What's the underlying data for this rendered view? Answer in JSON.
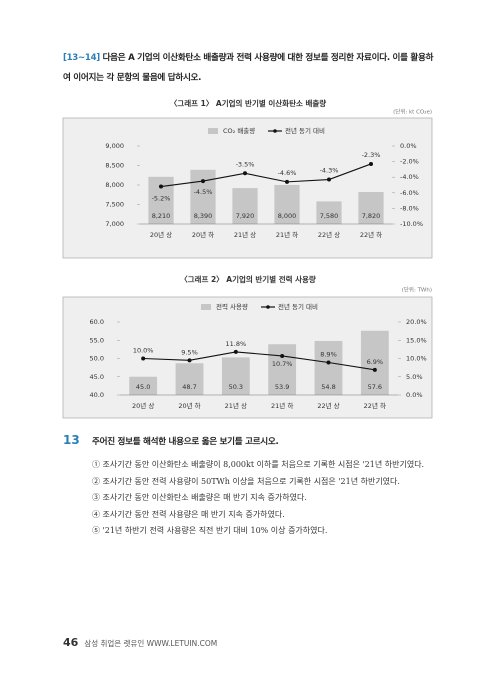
{
  "header": {
    "number": "[13~14]",
    "text": "다음은 A 기업의 이산화탄소 배출량과 전력 사용량에 대한 정보를 정리한 자료이다. 이를 활용하여 이어지는 각 문항의 물음에 답하시오."
  },
  "chart_data": [
    {
      "type": "bar",
      "title": "〈그래프 1〉 A기업의 반기별 이산화탄소 배출량",
      "unit": "(단위: kt CO₂e)",
      "categories": [
        "20년 상",
        "20년 하",
        "21년 상",
        "21년 하",
        "22년 상",
        "22년 하"
      ],
      "series": [
        {
          "name": "CO₂ 배출량",
          "type": "bar",
          "color": "#c6c6c6",
          "values": [
            8210,
            8390,
            7920,
            8000,
            7580,
            7820
          ],
          "value_labels": [
            "8,210",
            "8,390",
            "7,920",
            "8,000",
            "7,580",
            "7,820"
          ]
        },
        {
          "name": "전년 동기 대비",
          "type": "line",
          "axis": "y2",
          "color": "#111111",
          "values": [
            -5.2,
            -4.5,
            -3.5,
            -4.6,
            -4.3,
            -2.3
          ],
          "value_labels": [
            "-5.2%",
            "-4.5%",
            "-3.5%",
            "-4.6%",
            "-4.3%",
            "-2.3%"
          ]
        }
      ],
      "ylim": [
        7000,
        9000
      ],
      "yticks": [
        {
          "value": 7000,
          "label": "7,000"
        },
        {
          "value": 7500,
          "label": "7,500"
        },
        {
          "value": 8000,
          "label": "8,000"
        },
        {
          "value": 8500,
          "label": "8,500"
        },
        {
          "value": 9000,
          "label": "9,000"
        }
      ],
      "y2lim": [
        -10,
        0
      ],
      "y2ticks": [
        {
          "value": -10,
          "label": "-10.0%"
        },
        {
          "value": -8,
          "label": "-8.0%"
        },
        {
          "value": -6,
          "label": "-6.0%"
        },
        {
          "value": -4,
          "label": "-4.0%"
        },
        {
          "value": -2,
          "label": "-2.0%"
        },
        {
          "value": 0,
          "label": "0.0%"
        }
      ]
    },
    {
      "type": "bar",
      "title": "〈그래프 2〉 A기업의 반기별 전력 사용량",
      "unit": "(단위: TWh)",
      "categories": [
        "20년 상",
        "20년 하",
        "21년 상",
        "21년 하",
        "22년 상",
        "22년 하"
      ],
      "series": [
        {
          "name": "전력 사용량",
          "type": "bar",
          "color": "#c6c6c6",
          "values": [
            45.0,
            48.7,
            50.3,
            53.9,
            54.8,
            57.6
          ],
          "value_labels": [
            "45.0",
            "48.7",
            "50.3",
            "53.9",
            "54.8",
            "57.6"
          ]
        },
        {
          "name": "전년 동기 대비",
          "type": "line",
          "axis": "y2",
          "color": "#111111",
          "values": [
            10.0,
            9.5,
            11.8,
            10.7,
            8.9,
            6.9
          ],
          "value_labels": [
            "10.0%",
            "9.5%",
            "11.8%",
            "10.7%",
            "8.9%",
            "6.9%"
          ]
        }
      ],
      "ylim": [
        40,
        60
      ],
      "yticks": [
        {
          "value": 40,
          "label": "40.0"
        },
        {
          "value": 45,
          "label": "45.0"
        },
        {
          "value": 50,
          "label": "50.0"
        },
        {
          "value": 55,
          "label": "55.0"
        },
        {
          "value": 60,
          "label": "60.0"
        }
      ],
      "y2lim": [
        0,
        20
      ],
      "y2ticks": [
        {
          "value": 0,
          "label": "0.0%"
        },
        {
          "value": 5,
          "label": "5.0%"
        },
        {
          "value": 10,
          "label": "10.0%"
        },
        {
          "value": 15,
          "label": "15.0%"
        },
        {
          "value": 20,
          "label": "20.0%"
        }
      ]
    }
  ],
  "question": {
    "number": "13",
    "text": "주어진 정보를 해석한 내용으로 옳은 보기를 고르시오.",
    "options": [
      "① 조사기간 동안 이산화탄소 배출량이 8,000kt 이하를 처음으로 기록한 시점은 '21년 하반기였다.",
      "② 조사기간 동안 전력 사용량이 50TWh 이상을 처음으로 기록한 시점은 '21년 하반기였다.",
      "③ 조사기간 동안 이산화탄소 배출량은 매 반기 지속 증가하였다.",
      "④ 조사기간 동안 전력 사용량은 매 반기 지속 증가하였다.",
      "⑤ '21년 하반기 전력 사용량은 직전 반기 대비 10% 이상 증가하였다."
    ]
  },
  "footer": {
    "page": "46",
    "text": "삼성 취업은 렛유인 WWW.LETUIN.COM"
  }
}
